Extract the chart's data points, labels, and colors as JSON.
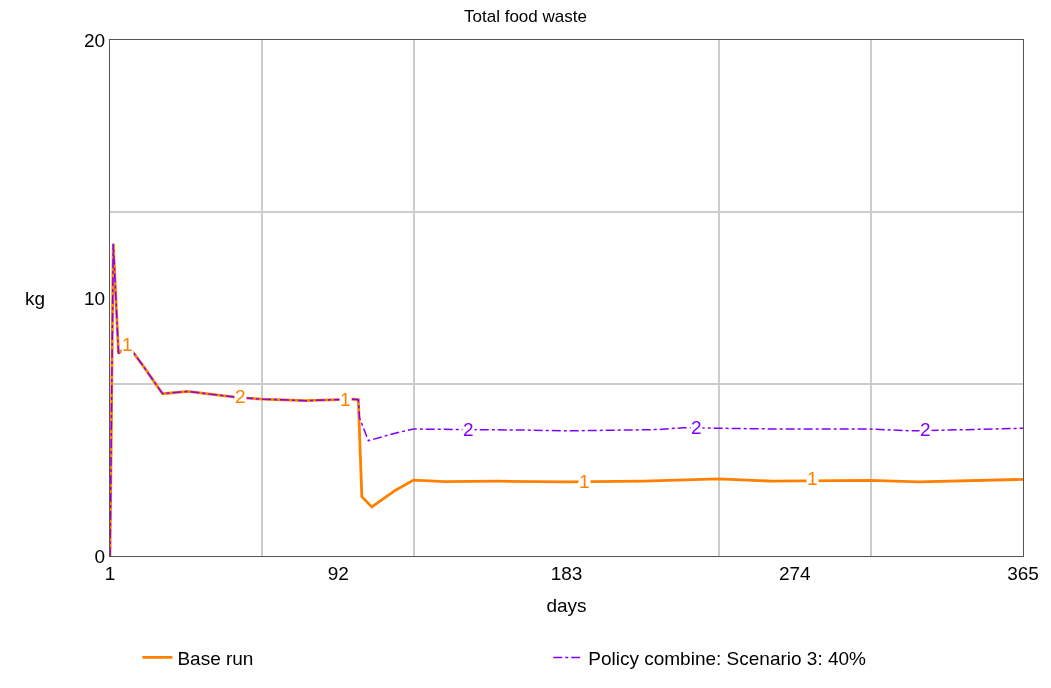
{
  "chart_data": {
    "type": "line",
    "title": "Total food waste",
    "xlabel": "days",
    "ylabel": "kg",
    "xlim": [
      1,
      365
    ],
    "ylim": [
      0,
      20
    ],
    "xticks": [
      1,
      {
        "value": 61.67,
        "label": null
      },
      92,
      {
        "value": 122.33,
        "label": null
      },
      183,
      {
        "value": 243.67,
        "label": null
      },
      274,
      {
        "value": 304.33,
        "label": null
      },
      365
    ],
    "yticks": [
      0,
      {
        "value": 6.667,
        "label": null
      },
      10,
      {
        "value": 13.333,
        "label": null
      },
      20
    ],
    "grid": true,
    "legend": "bottom",
    "marker": "none",
    "series": [
      {
        "name": "Base run",
        "color": "#ff8000",
        "line_style": "solid",
        "x": [
          1,
          2.3,
          4.4,
          8.1,
          14,
          20.8,
          22,
          32,
          52.5,
          62,
          79,
          98,
          100,
          101.4,
          105.4,
          114.7,
          122,
          134.5,
          155.6,
          183,
          213.8,
          243.7,
          265,
          304,
          323.5,
          365
        ],
        "values": [
          0,
          12.1,
          7.85,
          8.17,
          7.4,
          6.45,
          6.29,
          6.38,
          6.14,
          6.08,
          6.02,
          6.08,
          6.06,
          2.3,
          1.9,
          2.54,
          2.94,
          2.88,
          2.9,
          2.87,
          2.9,
          2.99,
          2.9,
          2.93,
          2.87,
          2.97
        ]
      },
      {
        "name": "Policy combine: Scenario 3: 40%",
        "color": "#8000ff",
        "line_style": "dashed",
        "x": [
          1,
          2.3,
          4.4,
          8.1,
          14,
          20.8,
          22,
          32,
          52.5,
          62,
          79,
          98,
          100,
          100.5,
          104,
          114.7,
          122,
          167.5,
          183,
          219,
          229.6,
          244,
          268,
          304,
          321,
          365
        ],
        "values": [
          0,
          12.1,
          7.85,
          8.17,
          7.4,
          6.45,
          6.29,
          6.38,
          6.14,
          6.08,
          6.02,
          6.08,
          6.06,
          5.35,
          4.47,
          4.76,
          4.92,
          4.88,
          4.85,
          4.9,
          4.97,
          4.95,
          4.92,
          4.92,
          4.85,
          4.95
        ]
      }
    ],
    "annotations": [
      {
        "text": "1",
        "x": 8.1,
        "y": 8.2
      },
      {
        "text": "2",
        "x": 53,
        "y": 6.2
      },
      {
        "text": "1",
        "x": 95,
        "y": 6.05
      },
      {
        "text": "2",
        "x": 144,
        "y": 4.9
      },
      {
        "text": "1",
        "x": 190,
        "y": 2.9
      },
      {
        "text": "2",
        "x": 235,
        "y": 5.0
      },
      {
        "text": "1",
        "x": 281,
        "y": 3.0
      },
      {
        "text": "2",
        "x": 326,
        "y": 4.9
      }
    ]
  }
}
